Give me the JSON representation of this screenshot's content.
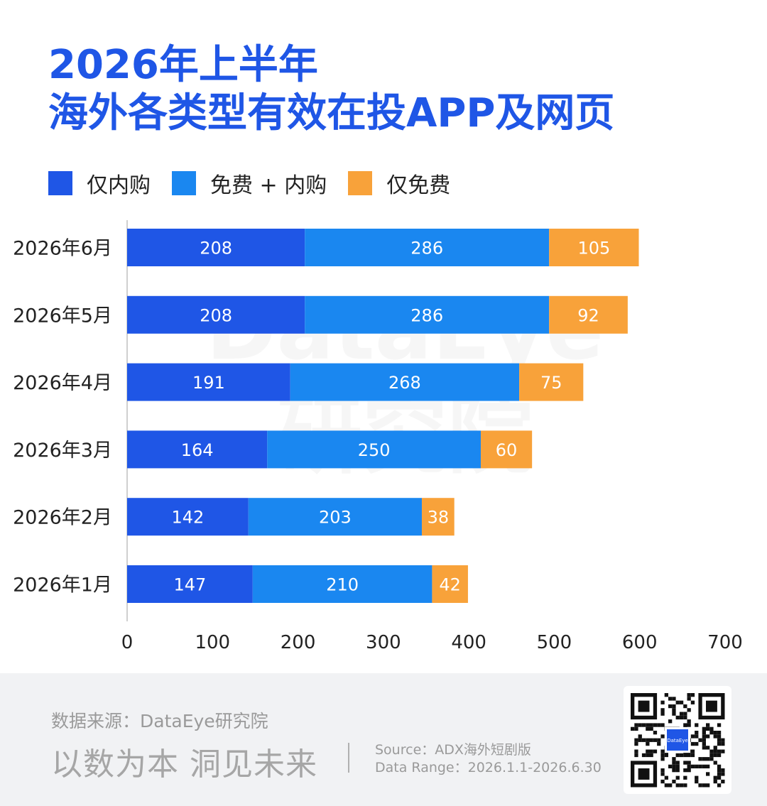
{
  "title": {
    "line1": "2026年上半年",
    "line2": "海外各类型有效在投APP及网页"
  },
  "legend": [
    {
      "label": "仅内购",
      "color": "#1f56e6"
    },
    {
      "label": "免费 + 内购",
      "color": "#1a87f0"
    },
    {
      "label": "仅免费",
      "color": "#f8a23a"
    }
  ],
  "watermark": {
    "line1": "DataEye",
    "line2": "研究院"
  },
  "chart_data": {
    "type": "bar",
    "orientation": "horizontal",
    "stacked": true,
    "categories": [
      "2026年6月",
      "2026年5月",
      "2026年4月",
      "2026年3月",
      "2026年2月",
      "2026年1月"
    ],
    "series": [
      {
        "name": "仅内购",
        "color": "#1f56e6",
        "values": [
          208,
          208,
          191,
          164,
          142,
          147
        ]
      },
      {
        "name": "免费 + 内购",
        "color": "#1a87f0",
        "values": [
          286,
          286,
          268,
          250,
          203,
          210
        ]
      },
      {
        "name": "仅免费",
        "color": "#f8a23a",
        "values": [
          105,
          92,
          75,
          60,
          38,
          42
        ]
      }
    ],
    "xlim": [
      0,
      700
    ],
    "xticks": [
      "0",
      "100",
      "200",
      "300",
      "400",
      "500",
      "600",
      "700"
    ],
    "grid": false,
    "legend_position": "top-left"
  },
  "footer": {
    "source_label": "数据来源：DataEye研究院",
    "slogan": "以数为本 洞见未来",
    "source_line": "Source：ADX海外短剧版",
    "range_line": "Data Range：2026.1.1-2026.6.30",
    "qr_badge": "DataEye\n研究院"
  }
}
